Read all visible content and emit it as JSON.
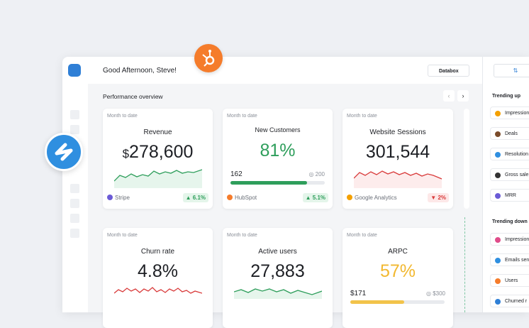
{
  "header": {
    "greeting": "Good Afternoon, Steve!",
    "workspace": "Databox"
  },
  "section": {
    "title": "Performance overview"
  },
  "cards": [
    {
      "period": "Month to date",
      "title": "Revenue",
      "currency": "$",
      "value": "278,600",
      "source": "Stripe",
      "change": "6.1%"
    },
    {
      "period": "Month to date",
      "title": "New Customers",
      "value": "81%",
      "current": "162",
      "target": "200",
      "source": "HubSpot",
      "change": "5.1%"
    },
    {
      "period": "Month to date",
      "title": "Website Sessions",
      "value": "301,544",
      "source": "Google Analytics",
      "change": "2%"
    },
    {
      "period": "Month to date",
      "title": "Churn rate",
      "value": "4.8%"
    },
    {
      "period": "Month to date",
      "title": "Active users",
      "value": "27,883"
    },
    {
      "period": "Month to date",
      "title": "ARPC",
      "value": "57%",
      "current": "$171",
      "target": "$300"
    }
  ],
  "sidebar": {
    "trending_up": {
      "title": "Trending up",
      "items": [
        "Impression",
        "Deals",
        "Resolution",
        "Gross sale",
        "MRR"
      ]
    },
    "trending_down": {
      "title": "Trending down",
      "items": [
        "Impression",
        "Emails sen",
        "Users",
        "Churned r"
      ]
    }
  }
}
